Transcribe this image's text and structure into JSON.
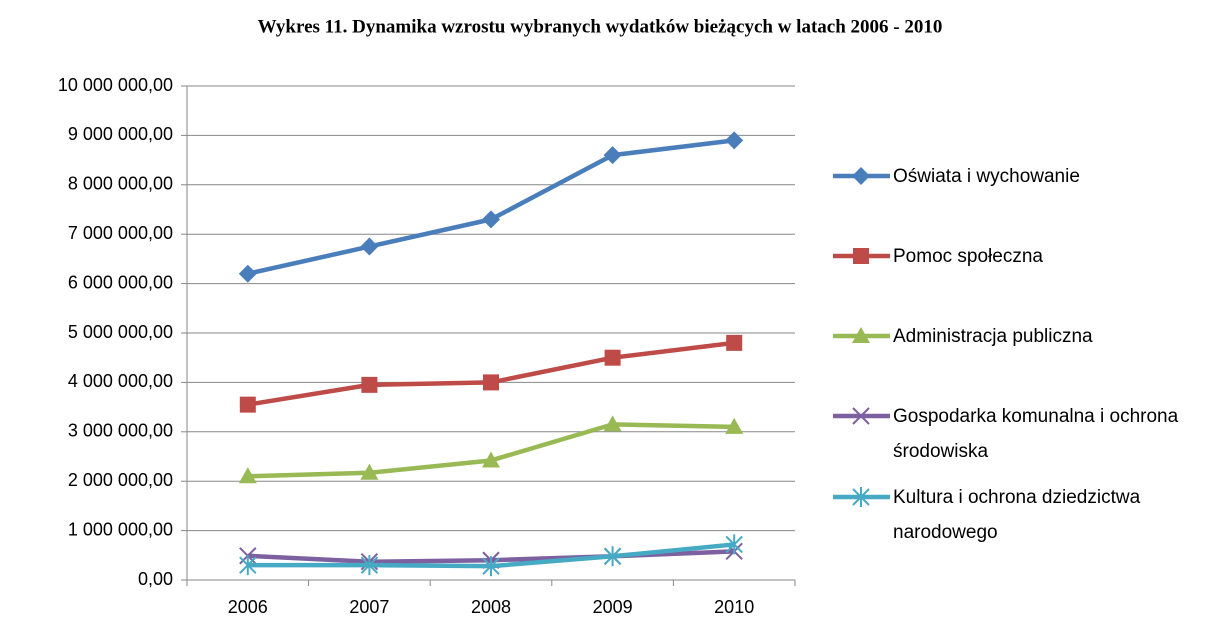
{
  "chart_data": {
    "type": "line",
    "title": "Wykres 11. Dynamika wzrostu wybranych wydatków bieżących w latach 2006 - 2010",
    "categories": [
      "2006",
      "2007",
      "2008",
      "2009",
      "2010"
    ],
    "series": [
      {
        "name": "Oświata i wychowanie",
        "color": "#4a7ebb",
        "marker": "diamond",
        "values": [
          6200000,
          6750000,
          7300000,
          8600000,
          8900000
        ]
      },
      {
        "name": "Pomoc społeczna",
        "color": "#be4b48",
        "marker": "square",
        "values": [
          3550000,
          3950000,
          4000000,
          4500000,
          4800000
        ]
      },
      {
        "name": "Administracja publiczna",
        "color": "#98b954",
        "marker": "triangle",
        "values": [
          2100000,
          2170000,
          2420000,
          3150000,
          3100000
        ]
      },
      {
        "name": "Gospodarka komunalna i ochrona środowiska",
        "color": "#7d60a0",
        "marker": "x",
        "values": [
          490000,
          370000,
          400000,
          480000,
          580000
        ]
      },
      {
        "name": "Kultura i ochrona dziedzictwa narodowego",
        "color": "#46aac5",
        "marker": "star",
        "values": [
          300000,
          300000,
          280000,
          480000,
          720000
        ]
      }
    ],
    "ylim": [
      0,
      10000000
    ],
    "yticks": [
      {
        "value": 0,
        "label": "0,00"
      },
      {
        "value": 1000000,
        "label": "1 000 000,00"
      },
      {
        "value": 2000000,
        "label": "2 000 000,00"
      },
      {
        "value": 3000000,
        "label": "3 000 000,00"
      },
      {
        "value": 4000000,
        "label": "4 000 000,00"
      },
      {
        "value": 5000000,
        "label": "5 000 000,00"
      },
      {
        "value": 6000000,
        "label": "6 000 000,00"
      },
      {
        "value": 7000000,
        "label": "7 000 000,00"
      },
      {
        "value": 8000000,
        "label": "8 000 000,00"
      },
      {
        "value": 9000000,
        "label": "9 000 000,00"
      },
      {
        "value": 10000000,
        "label": "10 000 000,00"
      }
    ],
    "grid": true,
    "legend": "right"
  }
}
